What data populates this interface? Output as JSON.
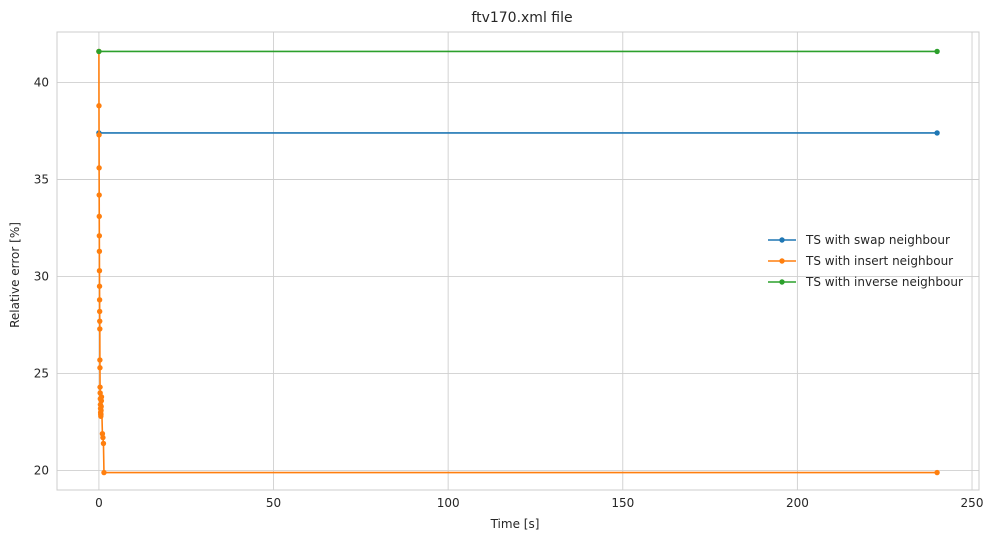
{
  "chart_data": {
    "type": "line",
    "title": "ftv170.xml file",
    "xlabel": "Time [s]",
    "ylabel": "Relative error [%]",
    "xlim": [
      -12,
      252
    ],
    "ylim": [
      19,
      42.6
    ],
    "xticks": [
      0,
      50,
      100,
      150,
      200,
      250
    ],
    "yticks": [
      20,
      25,
      30,
      35,
      40
    ],
    "grid": true,
    "legend_position": "center-right",
    "series": [
      {
        "name": "TS with swap neighbour",
        "color": "#1f77b4",
        "x": [
          0,
          240
        ],
        "y": [
          37.4,
          37.4
        ]
      },
      {
        "name": "TS with insert neighbour",
        "color": "#ff7f0e",
        "x": [
          0,
          0.02,
          0.04,
          0.06,
          0.08,
          0.1,
          0.12,
          0.14,
          0.16,
          0.18,
          0.2,
          0.22,
          0.24,
          0.26,
          0.28,
          0.3,
          0.33,
          0.36,
          0.4,
          0.43,
          0.46,
          0.49,
          0.52,
          0.55,
          0.58,
          0.61,
          0.65,
          0.7,
          0.74,
          1.0,
          1.15,
          1.3,
          1.45,
          240
        ],
        "y": [
          41.6,
          38.8,
          37.3,
          35.6,
          34.2,
          33.1,
          32.1,
          31.3,
          30.3,
          29.5,
          28.8,
          28.2,
          27.7,
          27.3,
          25.7,
          25.3,
          24.3,
          24.0,
          23.7,
          23.4,
          23.2,
          23.0,
          22.9,
          22.8,
          22.9,
          23.1,
          23.3,
          23.6,
          23.8,
          21.9,
          21.7,
          21.4,
          19.9,
          19.9
        ]
      },
      {
        "name": "TS with inverse neighbour",
        "color": "#2ca02c",
        "x": [
          0,
          240
        ],
        "y": [
          41.6,
          41.6
        ]
      }
    ]
  }
}
